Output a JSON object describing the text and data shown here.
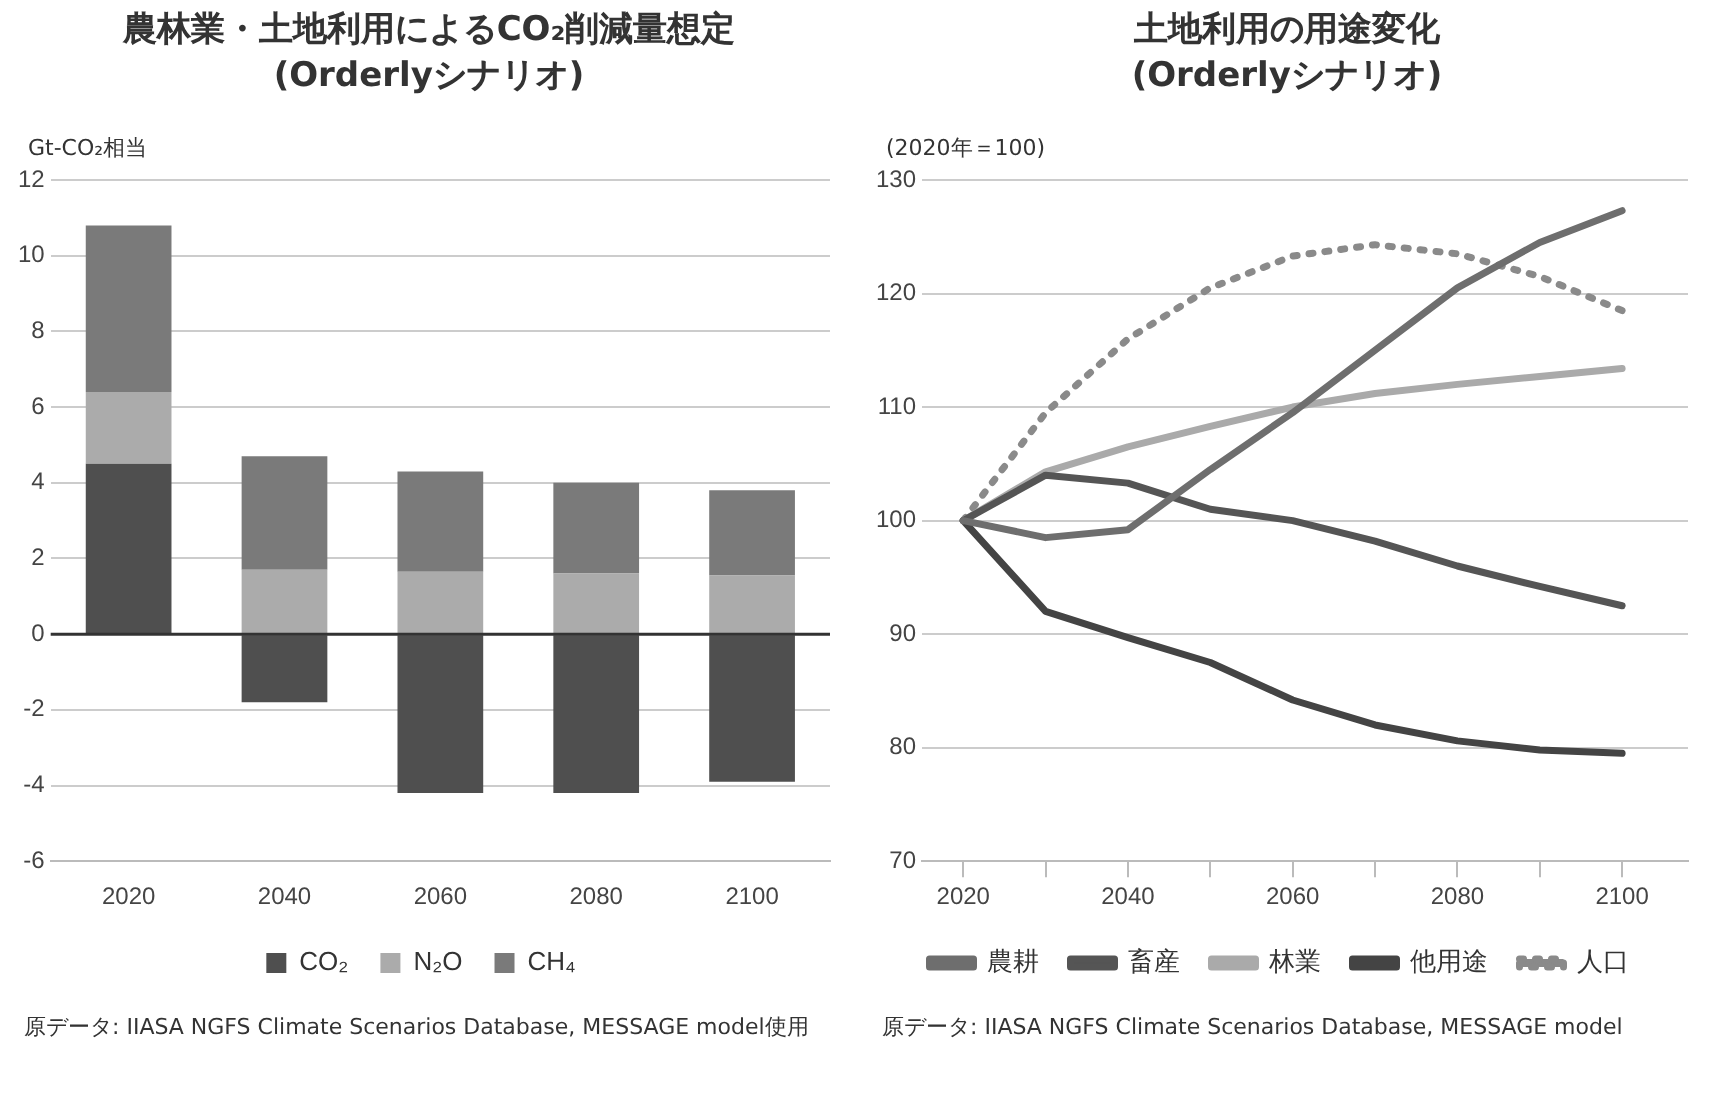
{
  "chart_data": [
    {
      "type": "bar",
      "title": "農林業・土地利用によるCO₂削減量想定\n(Orderlyシナリオ)",
      "ylabel": "Gt-CO₂相当",
      "categories": [
        "2020",
        "2040",
        "2060",
        "2080",
        "2100"
      ],
      "stacked": true,
      "series": [
        {
          "name": "CO₂",
          "color": "#4f4f4f",
          "values": [
            4.5,
            -1.8,
            -4.2,
            -4.2,
            -3.9
          ]
        },
        {
          "name": "N₂O",
          "color": "#ababab",
          "values": [
            1.9,
            1.7,
            1.65,
            1.6,
            1.55
          ]
        },
        {
          "name": "CH₄",
          "color": "#7a7a7a",
          "values": [
            4.4,
            3.0,
            2.65,
            2.4,
            2.25
          ]
        }
      ],
      "ylim": [
        -6,
        12
      ],
      "yticks": [
        -6,
        -4,
        -2,
        0,
        2,
        4,
        6,
        8,
        10,
        12
      ],
      "grid": "y",
      "legend": "bottom",
      "annotations": [
        "原データ: IIASA  NGFS Climate Scenarios Database, MESSAGE model使用"
      ]
    },
    {
      "type": "line",
      "title": "土地利用の用途変化\n(Orderlyシナリオ)",
      "ylabel": "(2020年＝100)",
      "x": [
        2020,
        2030,
        2040,
        2050,
        2060,
        2070,
        2080,
        2090,
        2100
      ],
      "series": [
        {
          "name": "農耕",
          "color": "#6e6e6e",
          "values": [
            100,
            98.5,
            99.2,
            104.5,
            109.5,
            115,
            120.5,
            124.5,
            127.3
          ]
        },
        {
          "name": "畜産",
          "color": "#555555",
          "values": [
            100,
            104,
            103.3,
            101,
            100,
            98.2,
            96,
            94.2,
            92.5
          ]
        },
        {
          "name": "林業",
          "color": "#aaaaaa",
          "values": [
            100,
            104.3,
            106.5,
            108.3,
            110,
            111.2,
            112,
            112.7,
            113.4
          ]
        },
        {
          "name": "他用途",
          "color": "#444444",
          "values": [
            100,
            92,
            89.7,
            87.5,
            84.2,
            82,
            80.6,
            79.8,
            79.5
          ]
        },
        {
          "name": "人口",
          "color": "#8a8a8a",
          "line_style": "dotted",
          "values": [
            100,
            109.5,
            116,
            120.5,
            123.3,
            124.3,
            123.5,
            121.5,
            118.5
          ]
        }
      ],
      "xlim": [
        2015,
        2108
      ],
      "xticks": [
        2020,
        {
          "value": 2030,
          "label": null
        },
        2040,
        {
          "value": 2050,
          "label": null
        },
        2060,
        {
          "value": 2070,
          "label": null
        },
        2080,
        {
          "value": 2090,
          "label": null
        },
        2100
      ],
      "ylim": [
        70,
        130
      ],
      "yticks": [
        70,
        80,
        90,
        100,
        110,
        120,
        130
      ],
      "grid": "y",
      "legend": "bottom",
      "marker": "none",
      "line_style": "solid",
      "annotations": [
        "原データ: IIASA  NGFS Climate Scenarios Database, MESSAGE model"
      ]
    }
  ]
}
